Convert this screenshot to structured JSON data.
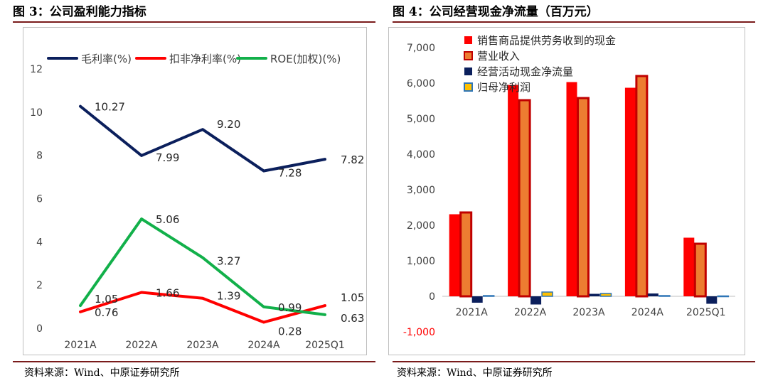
{
  "left": {
    "title": "图 3：公司盈利能力指标",
    "source": "资料来源：Wind、中原证券研究所"
  },
  "right": {
    "title": "图 4：公司经营现金净流量（百万元）",
    "source": "资料来源：Wind、中原证券研究所"
  },
  "colors": {
    "navy": "#0b1f5c",
    "red": "#ff0000",
    "green": "#12b04a",
    "bar_red": "#ff0000",
    "bar_orange": "#ed7d31",
    "bar_orange_border": "#c00000",
    "bar_navy": "#0b1f5c",
    "bar_gold": "#ffc000",
    "bar_gold_border": "#2e75b6"
  },
  "chart_data": [
    {
      "type": "line",
      "title": "公司盈利能力指标",
      "categories": [
        "2021A",
        "2022A",
        "2023A",
        "2024A",
        "2025Q1"
      ],
      "ylim": [
        0,
        12
      ],
      "yticks": [
        "0",
        "2",
        "4",
        "6",
        "8",
        "10",
        "12"
      ],
      "yticks_values": [
        0,
        2,
        4,
        6,
        8,
        10,
        12
      ],
      "legend_position": "top",
      "series": [
        {
          "name": "毛利率(%)",
          "values": [
            10.27,
            7.99,
            9.2,
            7.28,
            7.82
          ],
          "labels": [
            "10.27",
            "7.99",
            "9.20",
            "7.28",
            "7.82"
          ]
        },
        {
          "name": "扣非净利率(%)",
          "values": [
            0.76,
            1.66,
            1.39,
            0.28,
            1.05
          ],
          "labels": [
            "0.76",
            "1.66",
            "1.39",
            "0.28",
            "1.05"
          ]
        },
        {
          "name": "ROE(加权)(%)",
          "values": [
            1.05,
            5.06,
            3.27,
            0.99,
            0.63
          ],
          "labels": [
            "1.05",
            "5.06",
            "3.27",
            "0.99",
            "0.63"
          ]
        }
      ]
    },
    {
      "type": "bar",
      "title": "公司经营现金净流量（百万元）",
      "categories": [
        "2021A",
        "2022A",
        "2023A",
        "2024A",
        "2025Q1"
      ],
      "ylim": [
        -1000,
        7000
      ],
      "yticks": [
        "-1,000",
        "0",
        "1,000",
        "2,000",
        "3,000",
        "4,000",
        "5,000",
        "6,000",
        "7,000"
      ],
      "yticks_values": [
        -1000,
        0,
        1000,
        2000,
        3000,
        4000,
        5000,
        6000,
        7000
      ],
      "legend_position": "top-left",
      "series": [
        {
          "name": "销售商品提供劳务收到的现金",
          "values": [
            2310,
            5950,
            6030,
            5870,
            1650
          ]
        },
        {
          "name": "营业收入",
          "values": [
            2360,
            5520,
            5580,
            6200,
            1480
          ]
        },
        {
          "name": "经营活动现金净流量",
          "values": [
            -180,
            -230,
            70,
            80,
            -210
          ]
        },
        {
          "name": "归母净利润",
          "values": [
            20,
            120,
            80,
            20,
            10
          ]
        }
      ]
    }
  ]
}
